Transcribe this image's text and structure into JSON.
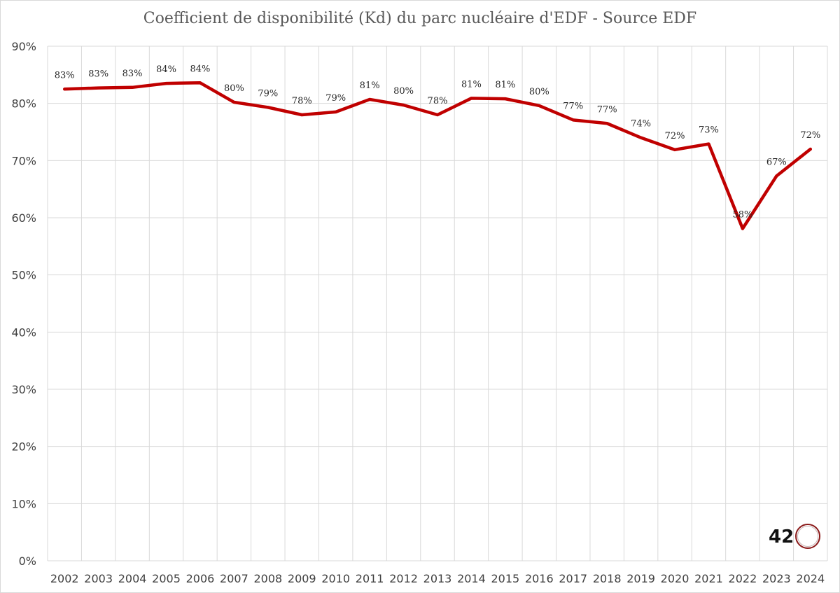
{
  "chart_data": {
    "type": "line",
    "title": "Coefficient de disponibilité (Kd) du parc nucléaire d'EDF - Source EDF",
    "xlabel": "",
    "ylabel": "",
    "categories": [
      "2002",
      "2003",
      "2004",
      "2005",
      "2006",
      "2007",
      "2008",
      "2009",
      "2010",
      "2011",
      "2012",
      "2013",
      "2014",
      "2015",
      "2016",
      "2017",
      "2018",
      "2019",
      "2020",
      "2021",
      "2022",
      "2023",
      "2024"
    ],
    "series": [
      {
        "values": [
          82.5,
          82.7,
          82.8,
          83.5,
          83.6,
          80.2,
          79.3,
          78.0,
          78.5,
          80.7,
          79.7,
          78.0,
          80.9,
          80.8,
          79.6,
          77.1,
          76.5,
          74.0,
          71.9,
          72.9,
          58.1,
          67.3,
          72.0
        ],
        "labels": [
          "83%",
          "83%",
          "83%",
          "84%",
          "84%",
          "80%",
          "79%",
          "78%",
          "79%",
          "81%",
          "80%",
          "78%",
          "81%",
          "81%",
          "80%",
          "77%",
          "77%",
          "74%",
          "72%",
          "73%",
          "58%",
          "67%",
          "72%"
        ],
        "color": "#c00000"
      }
    ],
    "ylim": [
      0,
      90
    ],
    "yticks": [
      0,
      10,
      20,
      30,
      40,
      50,
      60,
      70,
      80,
      90
    ],
    "ytick_labels": [
      "0%",
      "10%",
      "20%",
      "30%",
      "40%",
      "50%",
      "60%",
      "70%",
      "80%",
      "90%"
    ],
    "grid": true,
    "legend": "none"
  },
  "logo": {
    "text": "42",
    "name": "42-logo"
  }
}
